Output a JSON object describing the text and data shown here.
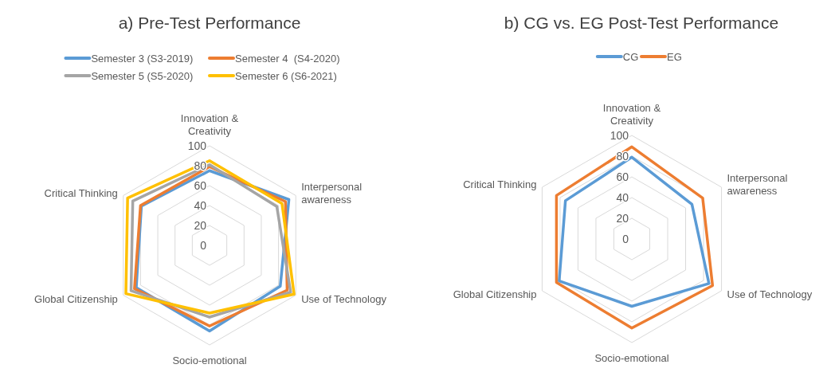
{
  "chart_data": [
    {
      "type": "radar",
      "title": "a) Pre-Test Performance",
      "categories": [
        "Innovation & Creativity",
        "Interpersonal awareness",
        "Use of Technology",
        "Socio-emotional",
        "Global Citizenship",
        "Critical Thinking"
      ],
      "ylim": [
        0,
        100
      ],
      "yticks": [
        0,
        20,
        40,
        60,
        80,
        100
      ],
      "grid": true,
      "legend": "top",
      "series": [
        {
          "name": "Semester 3 (S3-2019)",
          "color": "#5b9bd5",
          "values": [
            75,
            92,
            82,
            86,
            85,
            79
          ]
        },
        {
          "name": "Semester 4  (S4-2020)",
          "color": "#ed7d31",
          "values": [
            79,
            88,
            90,
            81,
            87,
            80
          ]
        },
        {
          "name": "Semester 5 (S5-2020)",
          "color": "#a5a5a5",
          "values": [
            81,
            78,
            94,
            72,
            91,
            89
          ]
        },
        {
          "name": "Semester 6 (S6-2021)",
          "color": "#ffc000",
          "values": [
            85,
            84,
            98,
            68,
            97,
            95
          ]
        }
      ]
    },
    {
      "type": "radar",
      "title": "b) CG vs. EG Post-Test Performance",
      "categories": [
        "Innovation & Creativity",
        "Interpersonal awareness",
        "Use of Technology",
        "Socio-emotional",
        "Global Citizenship",
        "Critical Thinking"
      ],
      "ylim": [
        0,
        100
      ],
      "yticks": [
        0,
        20,
        40,
        60,
        80,
        100
      ],
      "grid": true,
      "legend": "top",
      "series": [
        {
          "name": "CG",
          "color": "#5b9bd5",
          "values": [
            79,
            67,
            86,
            65,
            81,
            74
          ]
        },
        {
          "name": "EG",
          "color": "#ed7d31",
          "values": [
            89,
            79,
            90,
            86,
            84,
            84
          ]
        }
      ]
    }
  ]
}
